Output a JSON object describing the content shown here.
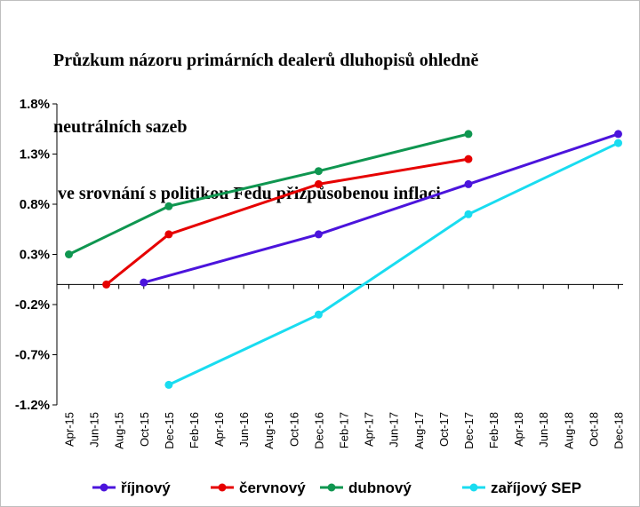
{
  "chart_data": {
    "type": "line",
    "title_lines": [
      "Průzkum názoru primárních dealerů dluhopisů ohledně",
      "neutrálních sazeb",
      " ve srovnání s politikou Fedu přizpůsobenou inflaci"
    ],
    "x_categories": [
      "Apr-15",
      "Jun-15",
      "Aug-15",
      "Oct-15",
      "Dec-15",
      "Feb-16",
      "Apr-16",
      "Jun-16",
      "Aug-16",
      "Oct-16",
      "Dec-16",
      "Feb-17",
      "Apr-17",
      "Jun-17",
      "Aug-17",
      "Oct-17",
      "Dec-17",
      "Feb-18",
      "Apr-18",
      "Jun-18",
      "Aug-18",
      "Oct-18",
      "Dec-18"
    ],
    "y_ticks": [
      "1.8%",
      "1.3%",
      "0.8%",
      "0.3%",
      "-0.2%",
      "-0.7%",
      "-1.2%"
    ],
    "ylim": [
      -1.2,
      1.8
    ],
    "x_axis_crosses_at": 0,
    "series": [
      {
        "name": "říjnový",
        "color": "#4B14DC",
        "points": [
          [
            "Oct-15",
            0.02
          ],
          [
            "Dec-16",
            0.5
          ],
          [
            "Dec-17",
            1.0
          ],
          [
            "Dec-18",
            1.5
          ]
        ]
      },
      {
        "name": "červnový",
        "color": "#E60000",
        "points": [
          [
            "Jul-15",
            0.0
          ],
          [
            "Dec-15",
            0.5
          ],
          [
            "Dec-16",
            1.0
          ],
          [
            "Dec-17",
            1.25
          ]
        ]
      },
      {
        "name": "dubnový",
        "color": "#0F9650",
        "points": [
          [
            "Apr-15",
            0.3
          ],
          [
            "Dec-15",
            0.78
          ],
          [
            "Dec-16",
            1.13
          ],
          [
            "Dec-17",
            1.5
          ]
        ]
      },
      {
        "name": "zaříjový SEP",
        "color": "#19DCF0",
        "points": [
          [
            "Dec-15",
            -1.0
          ],
          [
            "Dec-16",
            -0.3
          ],
          [
            "Dec-17",
            0.7
          ],
          [
            "Dec-18",
            1.41
          ]
        ]
      }
    ]
  }
}
